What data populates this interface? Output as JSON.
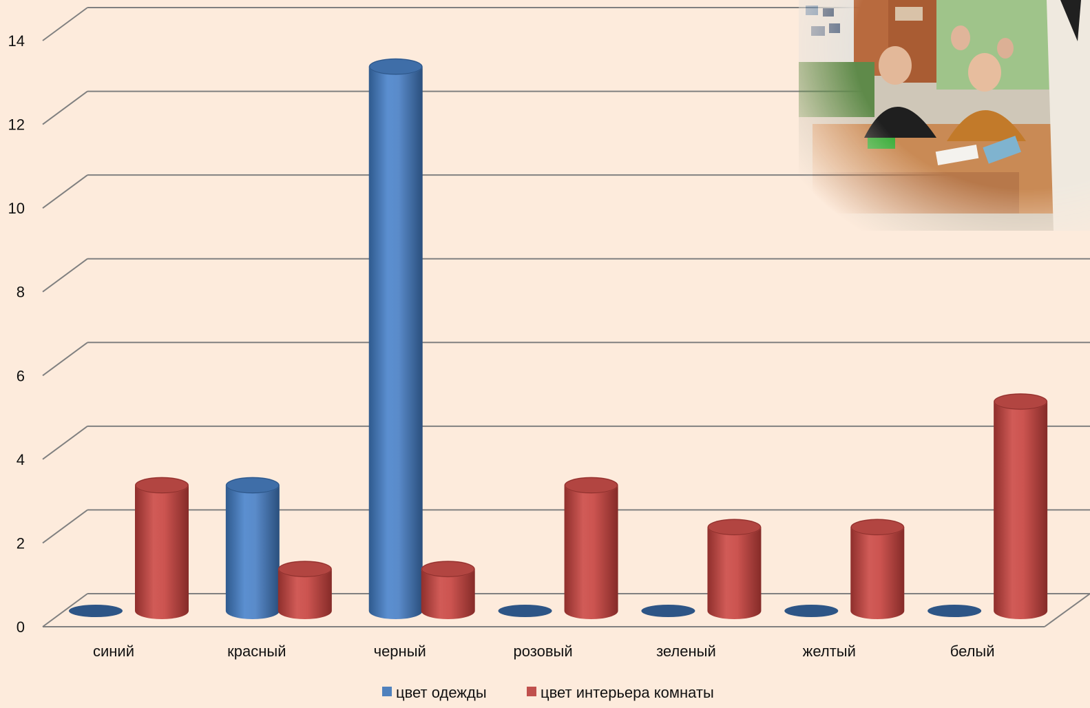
{
  "chart_data": {
    "type": "bar",
    "variant": "3d-cylinder",
    "title": "",
    "xlabel": "",
    "ylabel": "",
    "categories": [
      "синий",
      "красный",
      "черный",
      "розовый",
      "зеленый",
      "желтый",
      "белый"
    ],
    "series": [
      {
        "name": "цвет одежды",
        "color": "#4f81bd",
        "values": [
          0,
          3,
          13,
          0,
          0,
          0,
          0
        ]
      },
      {
        "name": "цвет интерьера комнаты",
        "color": "#c0504d",
        "values": [
          3,
          1,
          1,
          3,
          2,
          2,
          5
        ]
      }
    ],
    "ylim": [
      0,
      14
    ],
    "yticks": [
      "0",
      "2",
      "4",
      "6",
      "8",
      "10",
      "12",
      "14"
    ],
    "grid": true,
    "legend_position": "bottom"
  },
  "photo": {
    "description_icon": "classroom-photo",
    "colors": {
      "wall_green": "#9fc48a",
      "desk_wood": "#c98a55",
      "board": "#e6e2dc"
    }
  },
  "background": "#fdebdc"
}
